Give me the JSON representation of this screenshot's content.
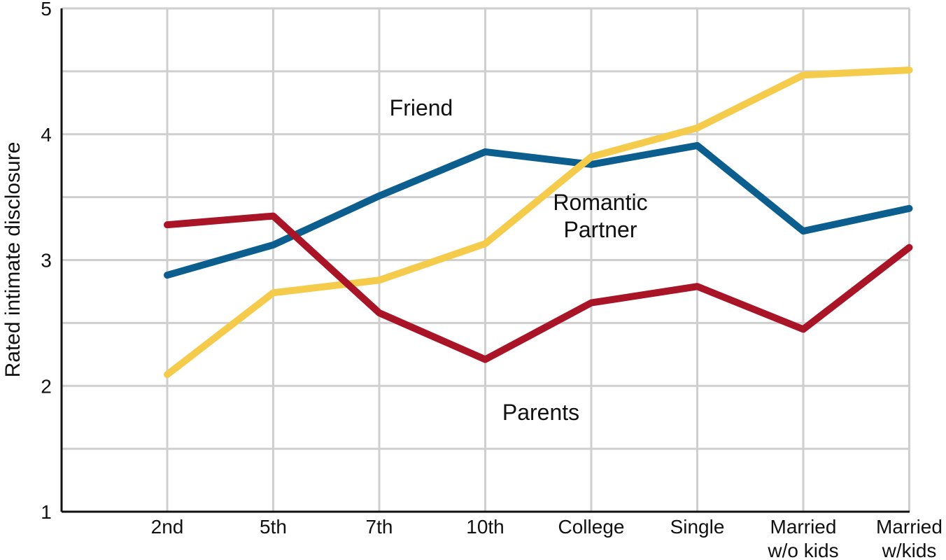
{
  "chart_data": {
    "type": "line",
    "title": "",
    "xlabel": "",
    "ylabel": "Rated intimate disclosure",
    "ylim": [
      1,
      5
    ],
    "yticks": [
      1,
      2,
      3,
      4,
      5
    ],
    "grid": true,
    "categories": [
      [
        "2nd"
      ],
      [
        "5th"
      ],
      [
        "7th"
      ],
      [
        "10th"
      ],
      [
        "College"
      ],
      [
        "Single"
      ],
      [
        "Married",
        "w/o kids"
      ],
      [
        "Married",
        "w/kids"
      ]
    ],
    "series": [
      {
        "name": "Friend",
        "color": "#0b5e8e",
        "values": [
          2.88,
          3.12,
          3.51,
          3.86,
          3.76,
          3.91,
          3.23,
          3.41
        ]
      },
      {
        "name": "Romantic Partner",
        "label_lines": [
          "Romantic",
          "Partner"
        ],
        "color": "#f5cb4c",
        "values": [
          2.09,
          2.74,
          2.84,
          3.13,
          3.82,
          4.05,
          4.47,
          4.51
        ]
      },
      {
        "name": "Parents",
        "color": "#a91527",
        "values": [
          3.28,
          3.35,
          2.58,
          2.21,
          2.66,
          2.79,
          2.45,
          3.1
        ]
      }
    ]
  }
}
